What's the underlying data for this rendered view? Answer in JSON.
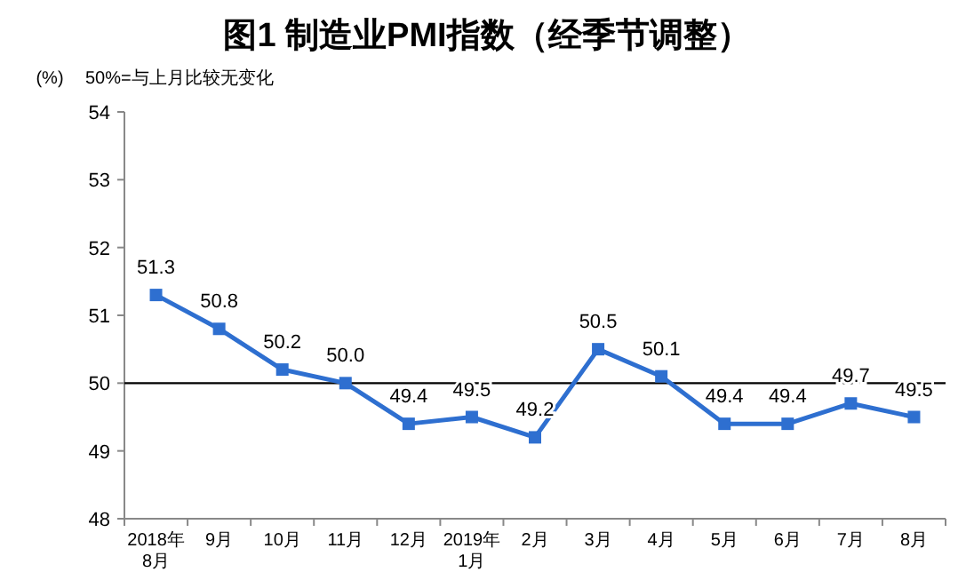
{
  "chart_data": {
    "type": "line",
    "title": "图1 制造业PMI指数（经季节调整）",
    "ylabel": "(%)",
    "annotations": [
      "50%=与上月比较无变化"
    ],
    "categories": [
      "2018年\n8月",
      "9月",
      "10月",
      "11月",
      "12月",
      "2019年\n1月",
      "2月",
      "3月",
      "4月",
      "5月",
      "6月",
      "7月",
      "8月"
    ],
    "series": [
      {
        "color": "#2e6fd0",
        "values": [
          51.3,
          50.8,
          50.2,
          50.0,
          49.4,
          49.5,
          49.2,
          50.5,
          50.1,
          49.4,
          49.4,
          49.7,
          49.5
        ],
        "value_labels": [
          "51.3",
          "50.8",
          "50.2",
          "50.0",
          "49.4",
          "49.5",
          "49.2",
          "50.5",
          "50.1",
          "49.4",
          "49.4",
          "49.7",
          "49.5"
        ]
      }
    ],
    "ylim": [
      48,
      54
    ],
    "yticks": [
      48,
      49,
      50,
      51,
      52,
      53,
      54
    ],
    "ref_lines": [
      {
        "axis": "y",
        "value": 50,
        "color": "#000000"
      }
    ],
    "marker": "square",
    "line_style": "solid"
  }
}
